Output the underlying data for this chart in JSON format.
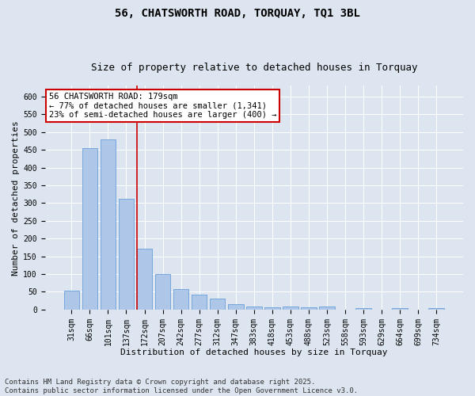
{
  "title": "56, CHATSWORTH ROAD, TORQUAY, TQ1 3BL",
  "subtitle": "Size of property relative to detached houses in Torquay",
  "xlabel": "Distribution of detached houses by size in Torquay",
  "ylabel": "Number of detached properties",
  "categories": [
    "31sqm",
    "66sqm",
    "101sqm",
    "137sqm",
    "172sqm",
    "207sqm",
    "242sqm",
    "277sqm",
    "312sqm",
    "347sqm",
    "383sqm",
    "418sqm",
    "453sqm",
    "488sqm",
    "523sqm",
    "558sqm",
    "593sqm",
    "629sqm",
    "664sqm",
    "699sqm",
    "734sqm"
  ],
  "values": [
    53,
    455,
    480,
    312,
    172,
    100,
    58,
    42,
    31,
    15,
    8,
    6,
    8,
    6,
    8,
    0,
    4,
    0,
    4,
    0,
    4
  ],
  "bar_color": "#aec6e8",
  "bar_edge_color": "#6a9fd8",
  "vline_index": 4,
  "vline_color": "#cc0000",
  "annotation_line1": "56 CHATSWORTH ROAD: 179sqm",
  "annotation_line2": "← 77% of detached houses are smaller (1,341)",
  "annotation_line3": "23% of semi-detached houses are larger (400) →",
  "annotation_box_edgecolor": "#cc0000",
  "annotation_bg_color": "#ffffff",
  "ylim": [
    0,
    630
  ],
  "yticks": [
    0,
    50,
    100,
    150,
    200,
    250,
    300,
    350,
    400,
    450,
    500,
    550,
    600
  ],
  "footer_text": "Contains HM Land Registry data © Crown copyright and database right 2025.\nContains public sector information licensed under the Open Government Licence v3.0.",
  "bg_color": "#dde6f0",
  "plot_bg_color": "#dde6f0",
  "title_fontsize": 10,
  "subtitle_fontsize": 9,
  "axis_label_fontsize": 8,
  "tick_fontsize": 7,
  "annotation_fontsize": 7.5,
  "footer_fontsize": 6.5
}
